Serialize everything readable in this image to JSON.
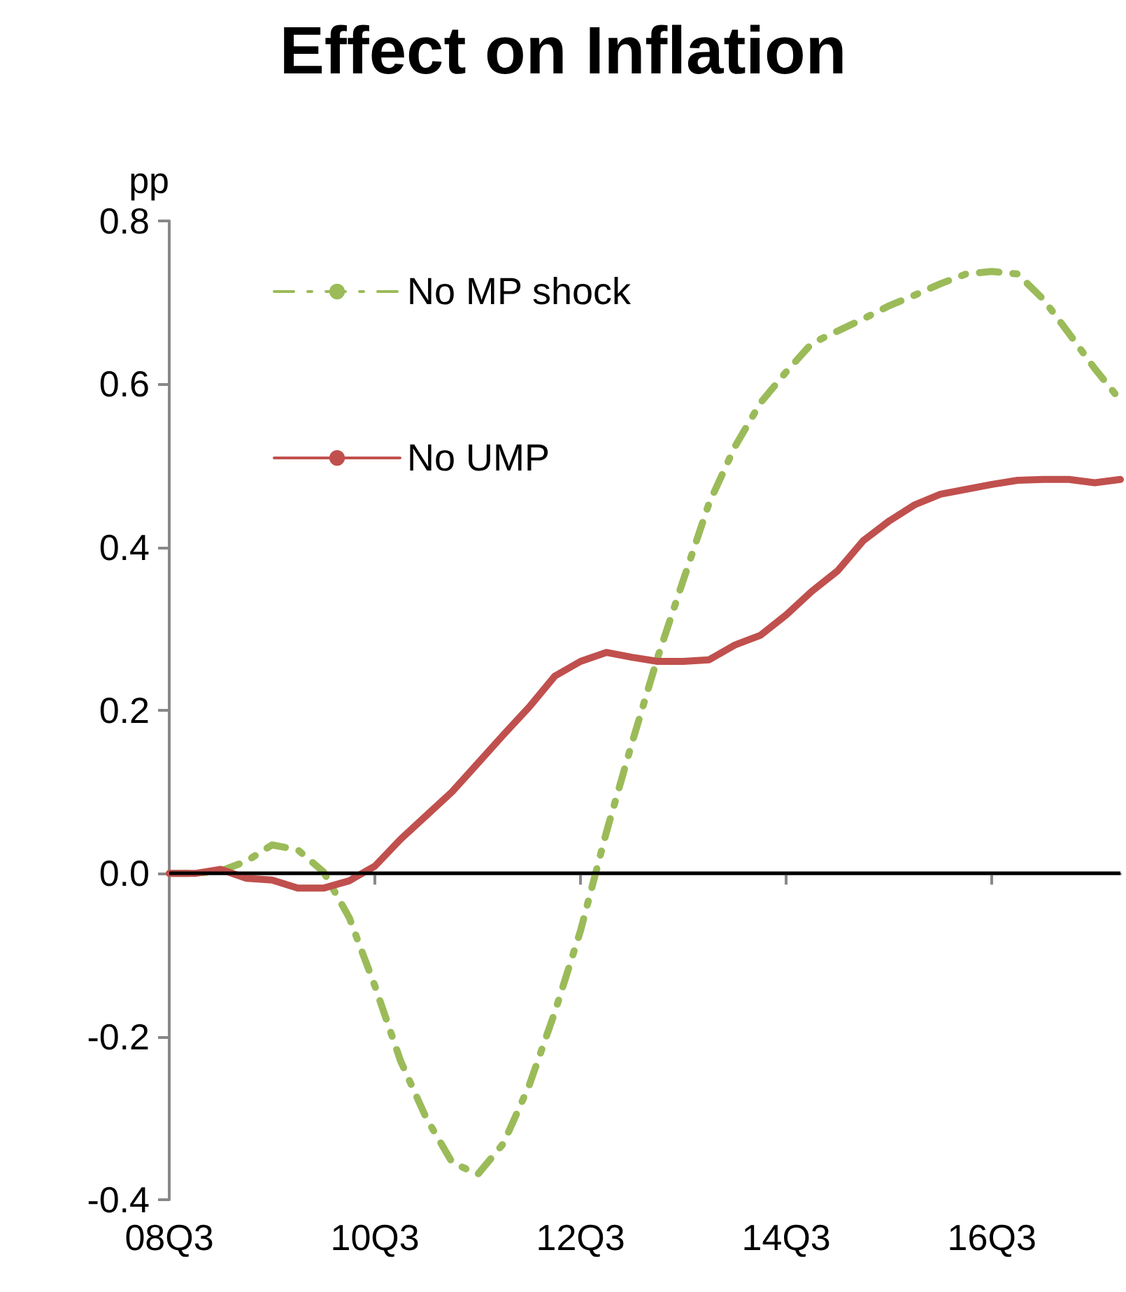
{
  "chart_data": {
    "type": "line",
    "title": "Effect on Inflation",
    "ylabel": "pp",
    "categories": [
      "08Q3",
      null,
      null,
      null,
      null,
      null,
      null,
      null,
      "10Q3",
      null,
      null,
      null,
      null,
      null,
      null,
      null,
      "12Q3",
      null,
      null,
      null,
      null,
      null,
      null,
      null,
      "14Q3",
      null,
      null,
      null,
      null,
      null,
      null,
      null,
      "16Q3",
      null,
      null,
      null,
      null,
      null
    ],
    "series": [
      {
        "name": "No MP shock",
        "color": "#9bbb59",
        "line_style": "dashed",
        "values": [
          0.0,
          0.0,
          0.003,
          0.015,
          0.035,
          0.029,
          0.002,
          -0.054,
          -0.138,
          -0.23,
          -0.3,
          -0.354,
          -0.369,
          -0.331,
          -0.26,
          -0.17,
          -0.07,
          0.05,
          0.16,
          0.265,
          0.36,
          0.454,
          0.523,
          0.577,
          0.615,
          0.65,
          0.665,
          0.68,
          0.696,
          0.709,
          0.723,
          0.735,
          0.738,
          0.735,
          0.704,
          0.662,
          0.619,
          0.58
        ]
      },
      {
        "name": "No UMP",
        "color": "#c0504d",
        "line_style": "solid",
        "values": [
          0.0,
          0.0,
          0.005,
          -0.006,
          -0.008,
          -0.018,
          -0.018,
          -0.009,
          0.009,
          0.042,
          0.071,
          0.1,
          0.135,
          0.17,
          0.204,
          0.242,
          0.26,
          0.271,
          0.265,
          0.26,
          0.26,
          0.262,
          0.28,
          0.292,
          0.317,
          0.346,
          0.371,
          0.408,
          0.432,
          0.452,
          0.465,
          0.471,
          0.477,
          0.482,
          0.483,
          0.483,
          0.479,
          0.483
        ]
      }
    ],
    "ylim": [
      -0.4,
      0.8
    ],
    "yticks": [
      {
        "value": -0.4,
        "label": "-0.4"
      },
      {
        "value": -0.2,
        "label": "-0.2"
      },
      {
        "value": 0,
        "label": "0.0"
      },
      {
        "value": 0.2,
        "label": "0.2"
      },
      {
        "value": 0.4,
        "label": "0.4"
      },
      {
        "value": 0.6,
        "label": "0.6"
      },
      {
        "value": 0.8,
        "label": "0.8"
      }
    ],
    "ref_lines": [
      {
        "axis": "y",
        "value": 0,
        "color": "#000000"
      }
    ],
    "grid": false,
    "legend": "top left",
    "marker": "none"
  }
}
